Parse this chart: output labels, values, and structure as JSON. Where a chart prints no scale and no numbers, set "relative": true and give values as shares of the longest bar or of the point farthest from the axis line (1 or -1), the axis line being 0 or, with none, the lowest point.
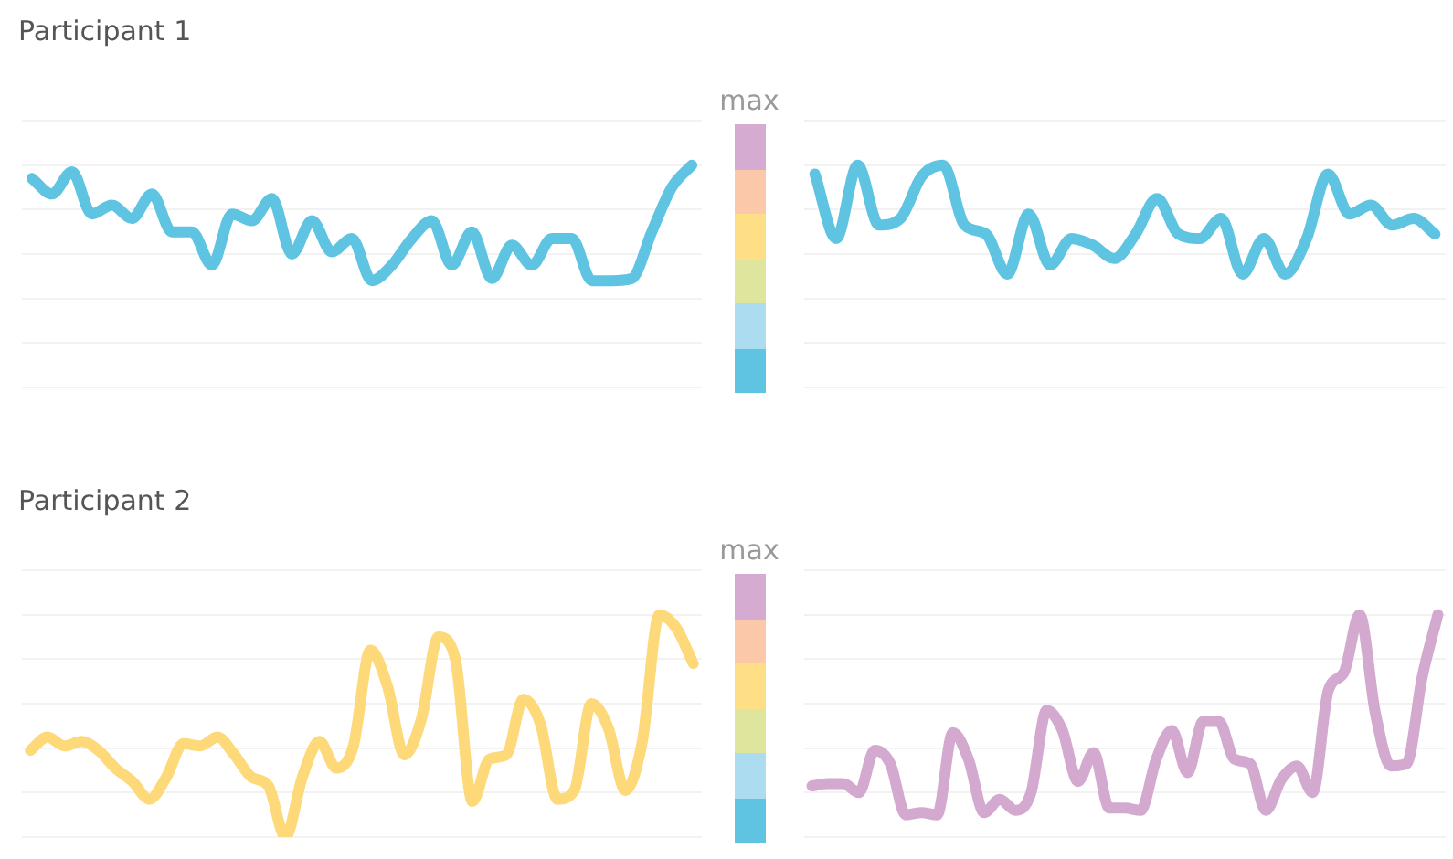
{
  "chart_data": [
    {
      "type": "line",
      "title": "Participant 1",
      "clabel": "max",
      "relative": true,
      "grid": "y",
      "legend": false,
      "marker": "none",
      "line_style": "solid",
      "categories": [
        null,
        null,
        null,
        null,
        null,
        null,
        null,
        null,
        null,
        null,
        null,
        null,
        null,
        null,
        null,
        null,
        null,
        null,
        null,
        null,
        null,
        null,
        null,
        null,
        null,
        null,
        null,
        null,
        null,
        null,
        null,
        null,
        null,
        null
      ],
      "series": [
        {
          "color": "#5ec4e2",
          "values": [
            0.94,
            0.87,
            0.97,
            0.78,
            0.82,
            0.76,
            0.87,
            0.7,
            0.7,
            0.55,
            0.78,
            0.75,
            0.85,
            0.6,
            0.75,
            0.61,
            0.67,
            0.48,
            0.55,
            0.67,
            0.75,
            0.55,
            0.7,
            0.49,
            0.64,
            0.55,
            0.67,
            0.67,
            0.48,
            0.48,
            0.49,
            0.7,
            0.9,
            1
          ]
        }
      ]
    },
    {
      "type": "line",
      "relative": true,
      "grid": "y",
      "legend": false,
      "marker": "none",
      "line_style": "solid",
      "categories": [
        null,
        null,
        null,
        null,
        null,
        null,
        null,
        null,
        null,
        null,
        null,
        null,
        null,
        null,
        null,
        null,
        null,
        null,
        null,
        null,
        null,
        null,
        null,
        null,
        null,
        null,
        null,
        null,
        null,
        null
      ],
      "series": [
        {
          "color": "#5ec4e2",
          "values": [
            0.96,
            0.67,
            1,
            0.73,
            0.76,
            0.95,
            1,
            0.73,
            0.69,
            0.51,
            0.78,
            0.55,
            0.67,
            0.64,
            0.58,
            0.69,
            0.85,
            0.69,
            0.67,
            0.76,
            0.51,
            0.67,
            0.51,
            0.67,
            0.96,
            0.78,
            0.82,
            0.73,
            0.76,
            0.69
          ]
        }
      ]
    },
    {
      "type": "line",
      "title": "Participant 2",
      "clabel": "max",
      "relative": true,
      "grid": "y",
      "legend": false,
      "marker": "none",
      "line_style": "solid",
      "categories": [
        null,
        null,
        null,
        null,
        null,
        null,
        null,
        null,
        null,
        null,
        null,
        null,
        null,
        null,
        null,
        null,
        null,
        null,
        null,
        null,
        null,
        null,
        null,
        null,
        null,
        null,
        null,
        null,
        null,
        null,
        null,
        null,
        null,
        null,
        null,
        null,
        null,
        null,
        null,
        null
      ],
      "series": [
        {
          "color": "#fdd97a",
          "values": [
            0.39,
            0.45,
            0.41,
            0.43,
            0.39,
            0.31,
            0.25,
            0.17,
            0.27,
            0.42,
            0.41,
            0.45,
            0.37,
            0.27,
            0.23,
            0,
            0.27,
            0.43,
            0.31,
            0.41,
            0.84,
            0.68,
            0.37,
            0.53,
            0.9,
            0.8,
            0.16,
            0.35,
            0.37,
            0.62,
            0.51,
            0.17,
            0.21,
            0.6,
            0.49,
            0.21,
            0.43,
            1,
            0.94,
            0.78
          ]
        }
      ]
    },
    {
      "type": "line",
      "relative": true,
      "grid": "y",
      "legend": false,
      "marker": "none",
      "line_style": "solid",
      "categories": [
        null,
        null,
        null,
        null,
        null,
        null,
        null,
        null,
        null,
        null,
        null,
        null,
        null,
        null,
        null,
        null,
        null,
        null,
        null,
        null,
        null,
        null,
        null,
        null,
        null,
        null,
        null,
        null,
        null,
        null,
        null,
        null,
        null,
        null,
        null,
        null,
        null,
        null,
        null,
        null,
        null
      ],
      "series": [
        {
          "color": "#d4a9d0",
          "values": [
            0.23,
            0.24,
            0.24,
            0.2,
            0.39,
            0.33,
            0.1,
            0.11,
            0.1,
            0.47,
            0.35,
            0.11,
            0.17,
            0.12,
            0.2,
            0.57,
            0.48,
            0.25,
            0.38,
            0.13,
            0.13,
            0.12,
            0.35,
            0.48,
            0.29,
            0.52,
            0.52,
            0.35,
            0.33,
            0.12,
            0.26,
            0.32,
            0.2,
            0.66,
            0.74,
            1,
            0.56,
            0.32,
            0.33,
            0.72,
            1
          ]
        }
      ]
    }
  ]
}
